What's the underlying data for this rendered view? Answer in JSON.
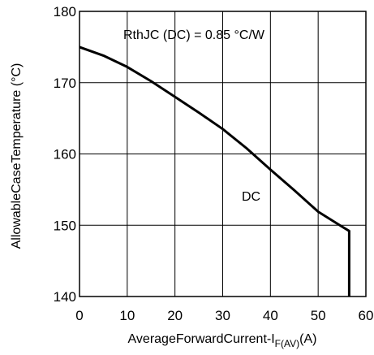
{
  "chart_data": {
    "type": "line",
    "title": "",
    "xlabel": "AverageForwardCurrent-I",
    "xlabel_sub": "F(AV)",
    "xlabel_unit": "(A)",
    "ylabel": "AllowableCaseTemperature (°C)",
    "xlim": [
      0,
      60
    ],
    "ylim": [
      140,
      180
    ],
    "xticks": [
      0,
      10,
      20,
      30,
      40,
      50,
      60
    ],
    "yticks": [
      140,
      150,
      160,
      170,
      180
    ],
    "grid": true,
    "annotations": {
      "rth": "RthJC (DC) = 0.85 °C/W",
      "curve_label": "DC"
    },
    "series": [
      {
        "name": "DC",
        "x": [
          0,
          5,
          10,
          15,
          20,
          25,
          30,
          35,
          40,
          45,
          50,
          55,
          56.5,
          56.5
        ],
        "y": [
          175,
          173.8,
          172.2,
          170.2,
          168,
          165.8,
          163.5,
          160.8,
          157.8,
          154.9,
          151.9,
          149.8,
          149.2,
          140
        ]
      }
    ]
  }
}
